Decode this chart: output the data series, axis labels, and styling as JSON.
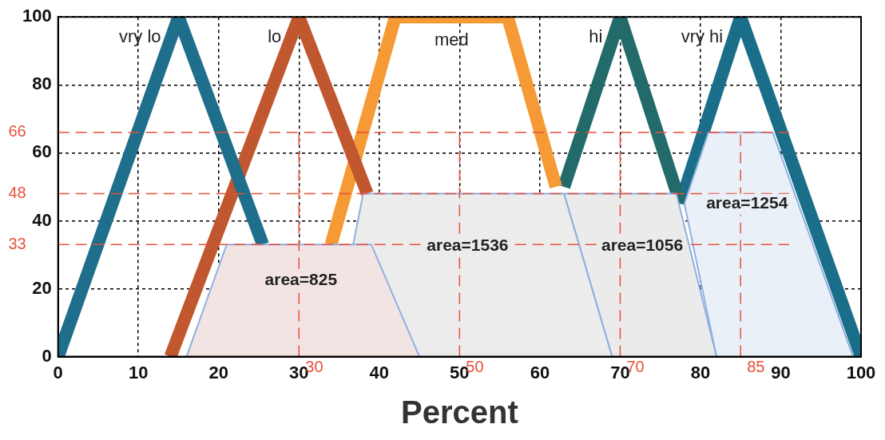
{
  "chart_data": {
    "type": "line",
    "xlabel": "Percent",
    "xlim": [
      0,
      100
    ],
    "xticks": [
      0,
      10,
      20,
      30,
      40,
      50,
      60,
      70,
      80,
      90,
      100
    ],
    "ylim": [
      0,
      100
    ],
    "yticks": [
      0,
      20,
      40,
      60,
      80,
      100
    ],
    "grid": true,
    "legend": false,
    "marker": "none",
    "line_style": "solid",
    "series": [
      {
        "name": "vry lo",
        "color": "#1f6e8c",
        "x": [
          0,
          15,
          25.5
        ],
        "values": [
          0,
          100,
          33
        ]
      },
      {
        "name": "lo",
        "color": "#c0572f",
        "x": [
          14,
          30,
          38.5
        ],
        "values": [
          0,
          100,
          48
        ]
      },
      {
        "name": "med",
        "color": "#f59a35",
        "x": [
          34,
          42,
          56,
          62
        ],
        "values": [
          33,
          100,
          100,
          50
        ]
      },
      {
        "name": "hi",
        "color": "#236a6a",
        "x": [
          63,
          70,
          77.5
        ],
        "values": [
          50,
          100,
          45
        ]
      },
      {
        "name": "vry hi",
        "color": "#1a6e8a",
        "x": [
          77.5,
          85,
          100
        ],
        "values": [
          45,
          100,
          0
        ]
      },
      {
        "name": "area=825",
        "type": "area",
        "color": "#8fb0e0",
        "x": [
          16,
          21,
          39,
          45
        ],
        "values": [
          0,
          33,
          33,
          0
        ]
      },
      {
        "name": "area=1536",
        "type": "area",
        "color": "#8fb0e0",
        "x": [
          34,
          38,
          63,
          69
        ],
        "values": [
          0,
          48,
          48,
          0
        ]
      },
      {
        "name": "area=1056",
        "type": "area",
        "color": "#8fb0e0",
        "x": [
          69,
          63,
          77,
          82
        ],
        "values": [
          0,
          48,
          48,
          0
        ]
      },
      {
        "name": "area=1254",
        "type": "area",
        "color": "#8fb0e0",
        "x": [
          82,
          78,
          81,
          89,
          99
        ],
        "values": [
          0,
          45,
          66,
          66,
          0
        ]
      }
    ],
    "ref_lines": [
      {
        "axis": "y",
        "value": 66,
        "label": "66",
        "color": "#e8503a",
        "line_style": "dashed"
      },
      {
        "axis": "y",
        "value": 48,
        "label": "48",
        "color": "#e8503a",
        "line_style": "dashed"
      },
      {
        "axis": "y",
        "value": 33,
        "label": "33",
        "color": "#e8503a",
        "line_style": "dashed"
      },
      {
        "axis": "x",
        "value": 30,
        "label": "30",
        "color": "#e8503a",
        "line_style": "dashed"
      },
      {
        "axis": "x",
        "value": 50,
        "label": "50",
        "color": "#e8503a",
        "line_style": "dashed"
      },
      {
        "axis": "x",
        "value": 70,
        "label": "70",
        "color": "#e8503a",
        "line_style": "dashed"
      },
      {
        "axis": "x",
        "value": 85,
        "label": "85",
        "color": "#e8503a",
        "line_style": "dashed"
      }
    ]
  }
}
